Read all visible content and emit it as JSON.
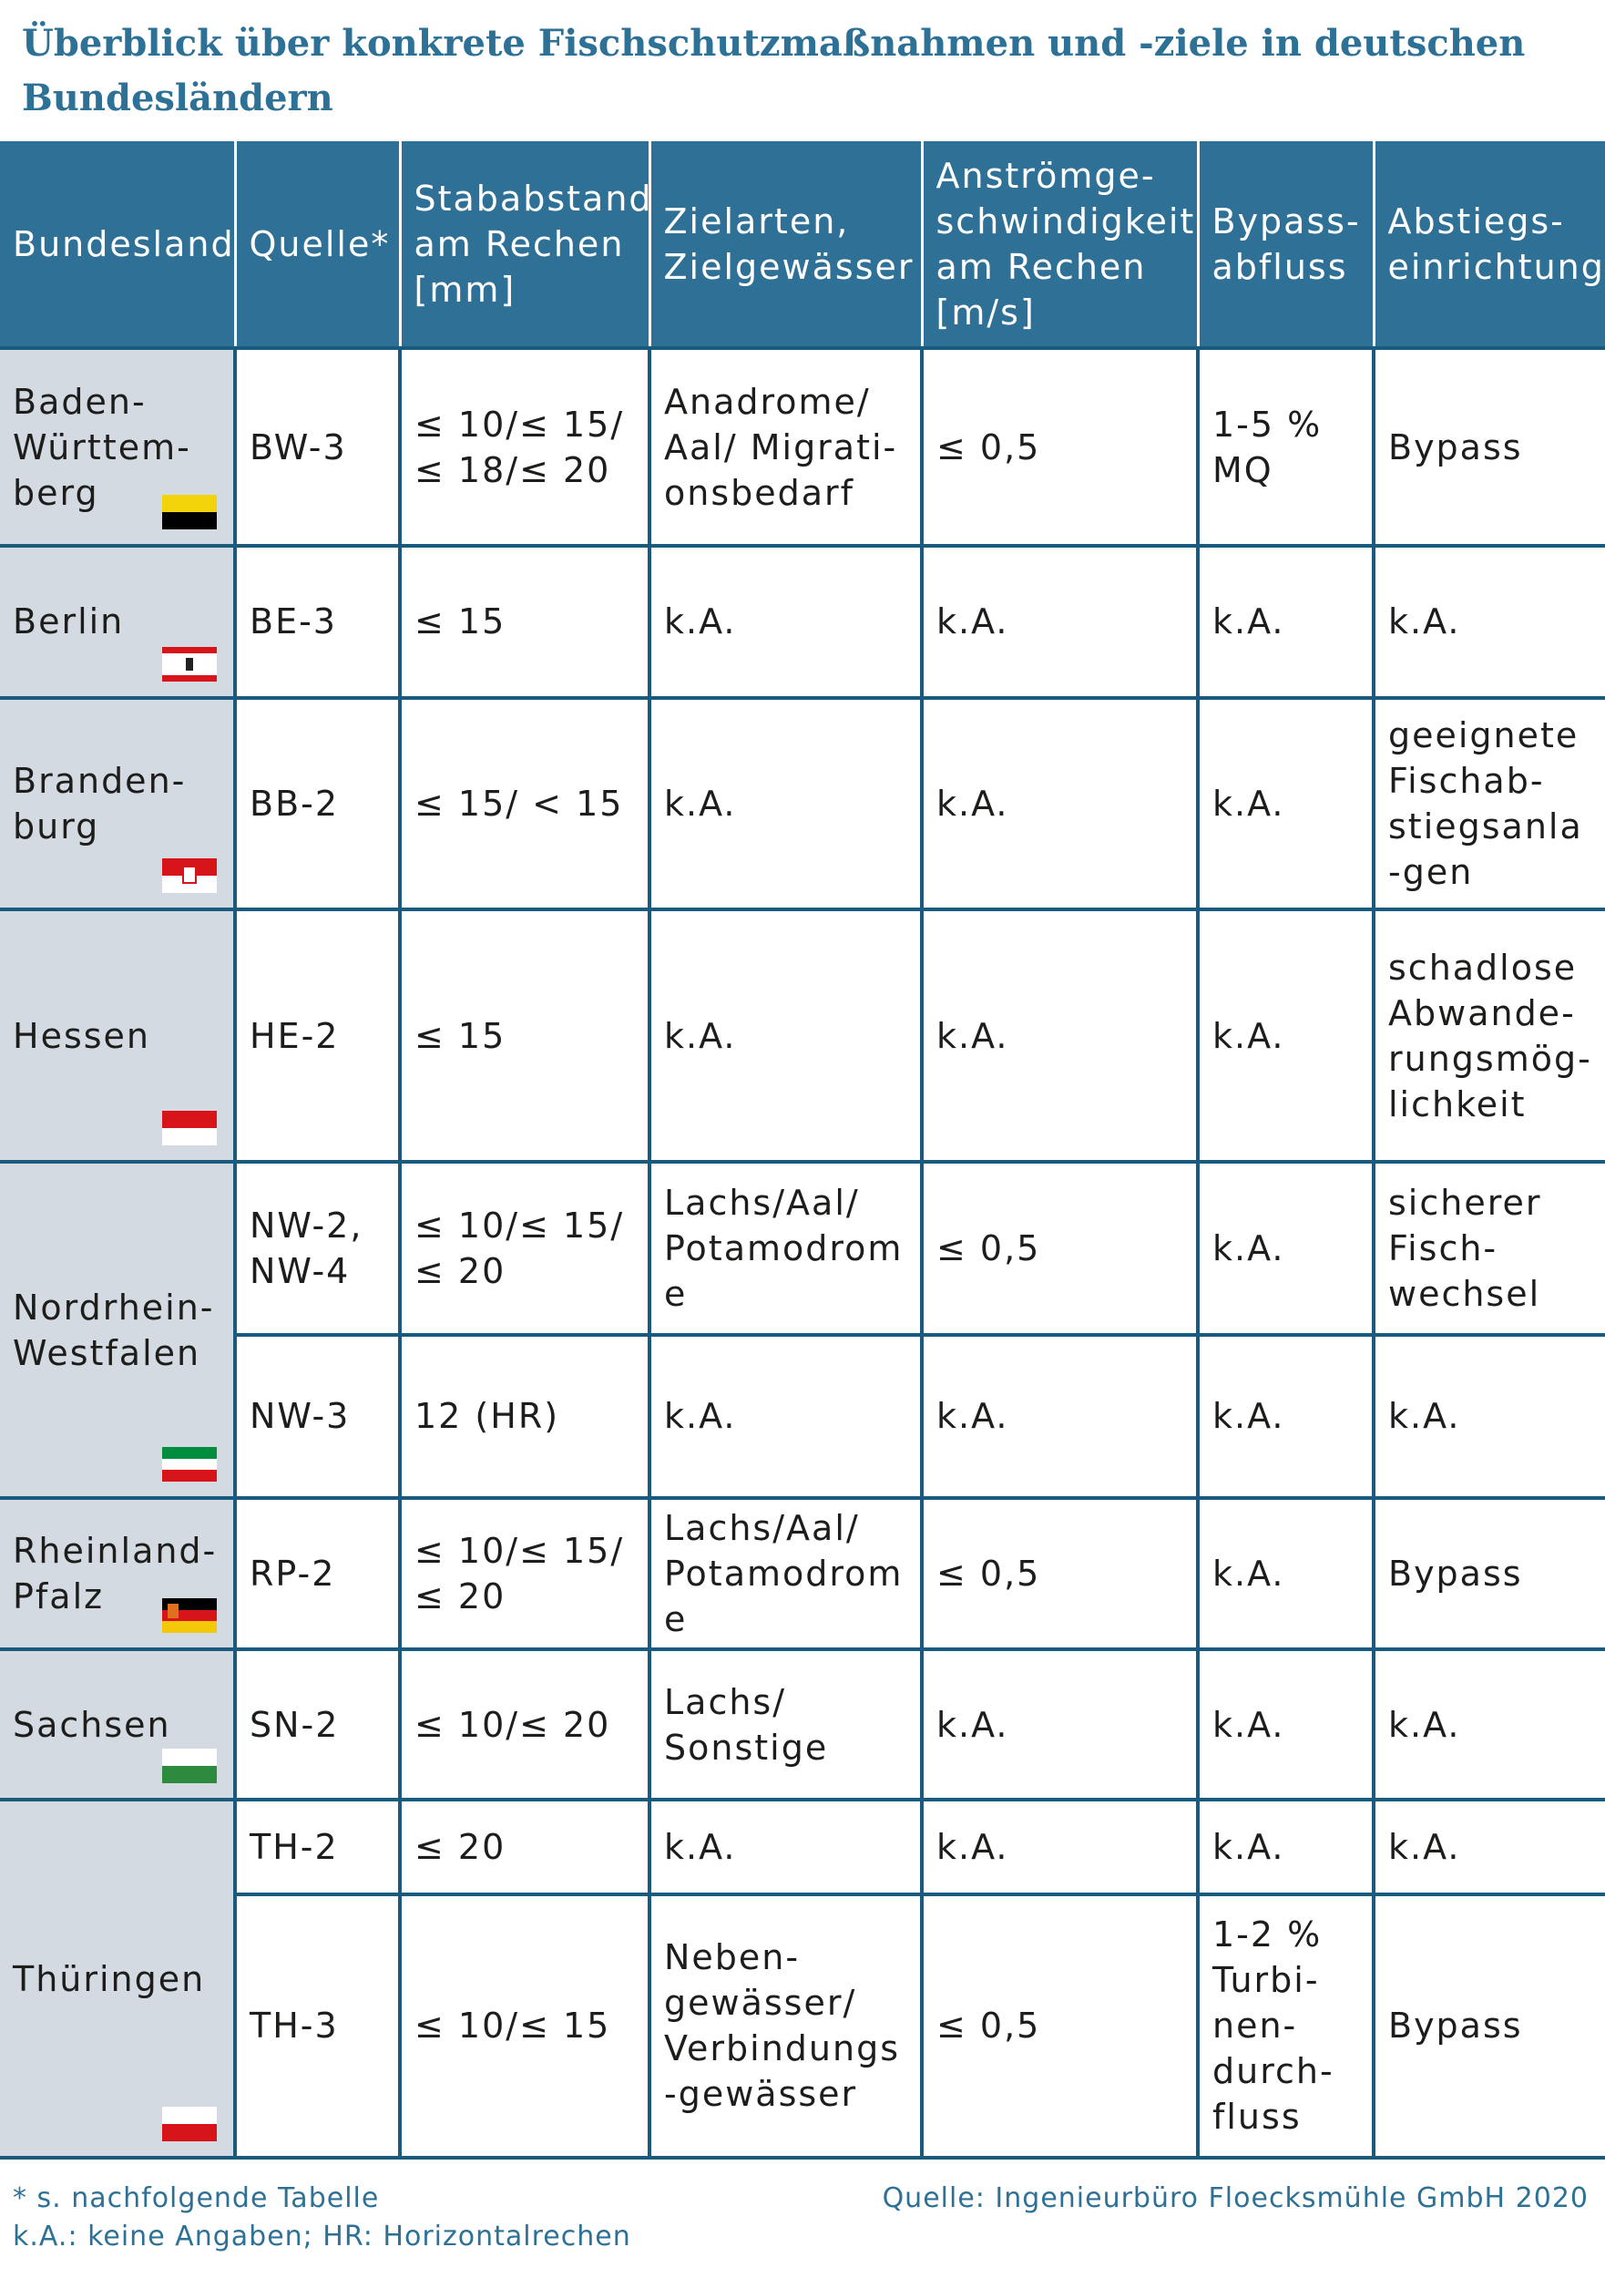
{
  "title": "Überblick über konkrete Fischschutzmaßnahmen und -ziele in deutschen Bundesländern",
  "headers": {
    "bundesland": "Bundesland",
    "quelle": "Quelle*",
    "stababstand": "Stababstand am Rechen [mm]",
    "zielarten": "Zielarten, Zielgewässer",
    "anstroem": "Anströmge-schwindigkeit am Rechen [m/s]",
    "bypass": "Bypass-abfluss",
    "abstieg": "Abstiegs-einrichtung"
  },
  "states": {
    "bw": "Baden-Württem-berg",
    "be": "Berlin",
    "bb": "Branden-burg",
    "he": "Hessen",
    "nw": "Nordrhein-Westfalen",
    "rp": "Rheinland-Pfalz",
    "sn": "Sachsen",
    "th": "Thüringen"
  },
  "rows": {
    "bw3": {
      "quelle": "BW-3",
      "stab": "≤ 10/≤ 15/ ≤ 18/≤ 20",
      "ziel": "Anadrome/ Aal/ Migrati-onsbedarf",
      "anstr": "≤ 0,5",
      "bypass": "1-5 % MQ",
      "abstieg": "Bypass"
    },
    "be3": {
      "quelle": "BE-3",
      "stab": "≤ 15",
      "ziel": "k.A.",
      "anstr": "k.A.",
      "bypass": "k.A.",
      "abstieg": "k.A."
    },
    "bb2": {
      "quelle": "BB-2",
      "stab": "≤ 15/ < 15",
      "ziel": "k.A.",
      "anstr": "k.A.",
      "bypass": "k.A.",
      "abstieg": "geeignete Fischab-stiegsanla-gen"
    },
    "he2": {
      "quelle": "HE-2",
      "stab": "≤ 15",
      "ziel": "k.A.",
      "anstr": "k.A.",
      "bypass": "k.A.",
      "abstieg": "schadlose Abwande-rungsmög-lichkeit"
    },
    "nw24": {
      "quelle": "NW-2, NW-4",
      "stab": "≤ 10/≤ 15/ ≤ 20",
      "ziel": "Lachs/Aal/ Potamodrome",
      "anstr": "≤ 0,5",
      "bypass": "k.A.",
      "abstieg": "sicherer Fisch-wechsel"
    },
    "nw3": {
      "quelle": "NW-3",
      "stab": "12 (HR)",
      "ziel": "k.A.",
      "anstr": "k.A.",
      "bypass": "k.A.",
      "abstieg": "k.A."
    },
    "rp2": {
      "quelle": "RP-2",
      "stab": "≤ 10/≤ 15/ ≤ 20",
      "ziel": "Lachs/Aal/ Potamodrome",
      "anstr": "≤ 0,5",
      "bypass": "k.A.",
      "abstieg": "Bypass"
    },
    "sn2": {
      "quelle": "SN-2",
      "stab": "≤ 10/≤ 20",
      "ziel": "Lachs/ Sonstige",
      "anstr": "k.A.",
      "bypass": "k.A.",
      "abstieg": "k.A."
    },
    "th2": {
      "quelle": "TH-2",
      "stab": "≤ 20",
      "ziel": "k.A.",
      "anstr": "k.A.",
      "bypass": "k.A.",
      "abstieg": "k.A."
    },
    "th3": {
      "quelle": "TH-3",
      "stab": "≤ 10/≤ 15",
      "ziel": "Neben-gewässer/ Verbindungs-gewässer",
      "anstr": "≤ 0,5",
      "bypass": "1-2 % Turbi-nen-durch-fluss",
      "abstieg": "Bypass"
    }
  },
  "footnote_1": "* s. nachfolgende Tabelle",
  "footnote_2": "k.A.: keine Angaben; HR: Horizontalrechen",
  "source": "Quelle: Ingenieurbüro Floecksmühle GmbH 2020",
  "colors": {
    "header_bg": "#2f7096",
    "title": "#2e7196",
    "state_bg": "#d4dae2",
    "grid": "#1a5a7e"
  }
}
